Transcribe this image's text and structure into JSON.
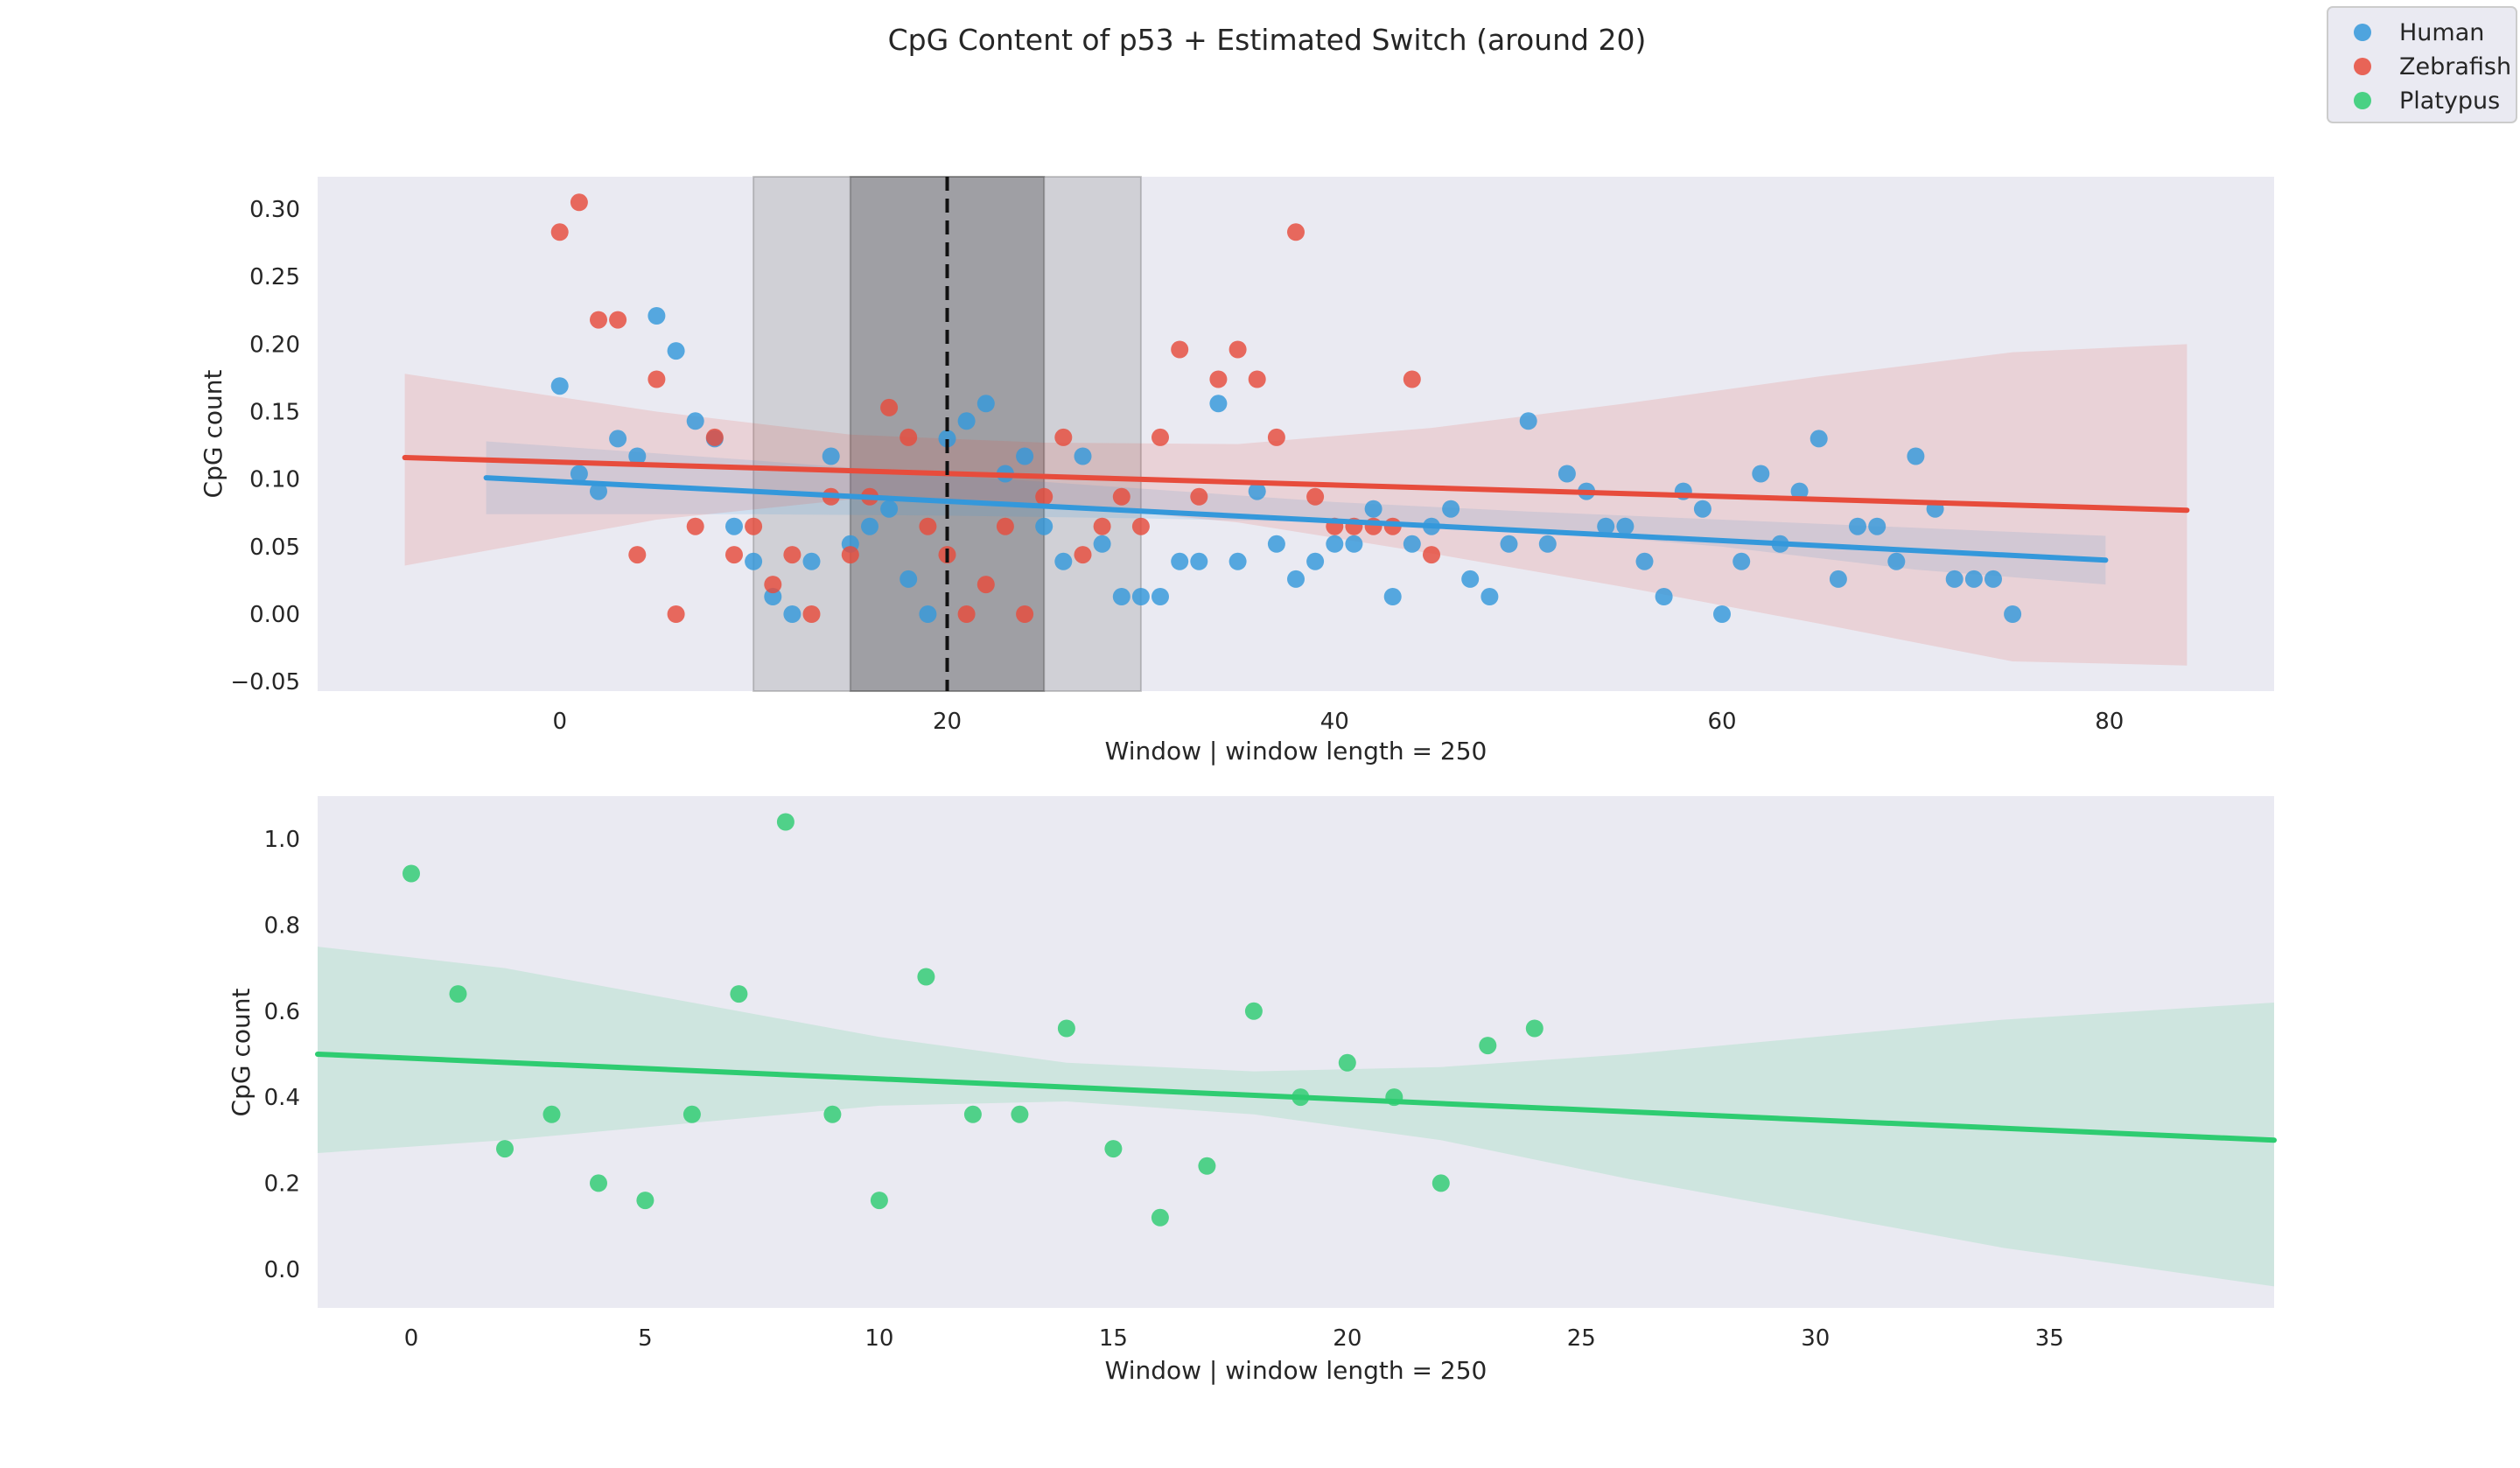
{
  "figure_title": "CpG Content of p53 + Estimated Switch (around 20)",
  "legend": {
    "placement": "top-right",
    "entries": [
      {
        "label": "Human",
        "color": "#3498db"
      },
      {
        "label": "Zebrafish",
        "color": "#e74c3c"
      },
      {
        "label": "Platypus",
        "color": "#2ecc71"
      }
    ]
  },
  "colors": {
    "human": "#3498db",
    "zebrafish": "#e74c3c",
    "platypus": "#2ecc71",
    "axes_bg": "#eaeaf2",
    "switch_line": "#111111"
  },
  "chart_data": [
    {
      "type": "scatter",
      "xlabel": "Window | window length = 250",
      "ylabel": "CpG count",
      "xlim": [
        -12.5,
        88.5
      ],
      "ylim": [
        -0.057,
        0.324
      ],
      "xticks": [
        0,
        20,
        40,
        60,
        80
      ],
      "yticks": [
        -0.05,
        0.0,
        0.05,
        0.1,
        0.15,
        0.2,
        0.25,
        0.3
      ],
      "ytick_labels": [
        "−0.05",
        "0.00",
        "0.05",
        "0.10",
        "0.15",
        "0.20",
        "0.25",
        "0.30"
      ],
      "grid": false,
      "switch": {
        "x": 20,
        "inner_band": [
          15,
          25
        ],
        "outer_band": [
          10,
          30
        ]
      },
      "series": [
        {
          "name": "Human",
          "color": "#3498db",
          "x": [
            0,
            1,
            2,
            3,
            4,
            5,
            6,
            7,
            8,
            9,
            10,
            11,
            12,
            13,
            14,
            15,
            16,
            17,
            18,
            19,
            20,
            21,
            22,
            23,
            24,
            25,
            26,
            27,
            28,
            29,
            30,
            31,
            32,
            33,
            34,
            35,
            36,
            37,
            38,
            39,
            40,
            41,
            42,
            43,
            44,
            45,
            46,
            47,
            48,
            49,
            50,
            51,
            52,
            53,
            54,
            55,
            56,
            57,
            58,
            59,
            60,
            61,
            62,
            63,
            64,
            65,
            66,
            67,
            68,
            69,
            70,
            71,
            72,
            73,
            74,
            75
          ],
          "y": [
            0.169,
            0.104,
            0.091,
            0.13,
            0.117,
            0.221,
            0.195,
            0.143,
            0.13,
            0.065,
            0.039,
            0.013,
            0.0,
            0.039,
            0.117,
            0.052,
            0.065,
            0.078,
            0.026,
            0.0,
            0.13,
            0.143,
            0.156,
            0.104,
            0.117,
            0.065,
            0.039,
            0.117,
            0.052,
            0.013,
            0.013,
            0.013,
            0.039,
            0.039,
            0.156,
            0.039,
            0.091,
            0.052,
            0.026,
            0.039,
            0.052,
            0.052,
            0.078,
            0.013,
            0.052,
            0.065,
            0.078,
            0.026,
            0.013,
            0.052,
            0.143,
            0.052,
            0.104,
            0.091,
            0.065,
            0.065,
            0.039,
            0.013,
            0.091,
            0.078,
            0.0,
            0.039,
            0.104,
            0.052,
            0.091,
            0.13,
            0.026,
            0.065,
            0.065,
            0.039,
            0.117,
            0.078,
            0.026,
            0.026,
            0.026,
            0.0
          ],
          "fit": {
            "x": [
              -3.8,
              79.8
            ],
            "y": [
              0.101,
              0.04
            ],
            "ci_x": [
              -3.8,
              10,
              20,
              30,
              40,
              50,
              60,
              70,
              79.8
            ],
            "ci_lo": [
              0.074,
              0.074,
              0.073,
              0.071,
              0.068,
              0.062,
              0.05,
              0.033,
              0.022
            ],
            "ci_hi": [
              0.128,
              0.114,
              0.103,
              0.093,
              0.083,
              0.076,
              0.07,
              0.064,
              0.058
            ]
          }
        },
        {
          "name": "Zebrafish",
          "color": "#e74c3c",
          "x": [
            0,
            1,
            2,
            3,
            4,
            5,
            6,
            7,
            8,
            9,
            10,
            11,
            12,
            13,
            14,
            15,
            16,
            17,
            18,
            19,
            20,
            21,
            22,
            23,
            24,
            25,
            26,
            27,
            28,
            29,
            30,
            31,
            32,
            33,
            34,
            35,
            36,
            37,
            38,
            39,
            40,
            41,
            42,
            43,
            44,
            45
          ],
          "y": [
            0.283,
            0.305,
            0.218,
            0.218,
            0.044,
            0.174,
            0.0,
            0.065,
            0.131,
            0.044,
            0.065,
            0.022,
            0.044,
            0.0,
            0.087,
            0.044,
            0.087,
            0.153,
            0.131,
            0.065,
            0.044,
            0.0,
            0.022,
            0.065,
            0.0,
            0.087,
            0.131,
            0.044,
            0.065,
            0.087,
            0.065,
            0.131,
            0.196,
            0.087,
            0.174,
            0.196,
            0.174,
            0.131,
            0.283,
            0.087,
            0.065,
            0.065,
            0.065,
            0.065,
            0.174,
            0.044
          ],
          "fit": {
            "x": [
              -8.0,
              84.0
            ],
            "y": [
              0.116,
              0.077
            ],
            "ci_x": [
              -8,
              5,
              15,
              25,
              35,
              45,
              55,
              65,
              75,
              84
            ],
            "ci_lo": [
              0.036,
              0.07,
              0.085,
              0.082,
              0.068,
              0.045,
              0.02,
              -0.007,
              -0.035,
              -0.038
            ],
            "ci_hi": [
              0.178,
              0.15,
              0.133,
              0.127,
              0.126,
              0.138,
              0.156,
              0.176,
              0.194,
              0.2
            ]
          }
        }
      ]
    },
    {
      "type": "scatter",
      "xlabel": "Window | window length = 250",
      "ylabel": "CpG count",
      "xlim": [
        -2.0,
        39.8
      ],
      "ylim": [
        -0.09,
        1.1
      ],
      "xticks": [
        0,
        5,
        10,
        15,
        20,
        25,
        30,
        35
      ],
      "yticks": [
        0.0,
        0.2,
        0.4,
        0.6,
        0.8,
        1.0
      ],
      "ytick_labels": [
        "0.0",
        "0.2",
        "0.4",
        "0.6",
        "0.8",
        "1.0"
      ],
      "grid": false,
      "series": [
        {
          "name": "Platypus",
          "color": "#2ecc71",
          "x": [
            0,
            1,
            2,
            3,
            4,
            5,
            6,
            7,
            8,
            9,
            10,
            11,
            12,
            13,
            14,
            15,
            16,
            17,
            18,
            19,
            20,
            21,
            22,
            23,
            24
          ],
          "y": [
            0.92,
            0.64,
            0.28,
            0.36,
            0.2,
            0.16,
            0.36,
            0.64,
            1.04,
            0.36,
            0.16,
            0.68,
            0.36,
            0.36,
            0.56,
            0.28,
            0.12,
            0.24,
            0.6,
            0.4,
            0.48,
            0.4,
            0.2,
            0.52,
            0.56
          ],
          "fit": {
            "x": [
              -2.0,
              39.8
            ],
            "y": [
              0.5,
              0.3
            ],
            "ci_x": [
              -2,
              2,
              6,
              10,
              14,
              18,
              22,
              26,
              30,
              34,
              39.8
            ],
            "ci_lo": [
              0.27,
              0.3,
              0.34,
              0.38,
              0.39,
              0.36,
              0.3,
              0.21,
              0.13,
              0.05,
              -0.04
            ],
            "ci_hi": [
              0.75,
              0.7,
              0.62,
              0.54,
              0.48,
              0.46,
              0.47,
              0.5,
              0.54,
              0.58,
              0.62
            ]
          }
        }
      ]
    }
  ]
}
